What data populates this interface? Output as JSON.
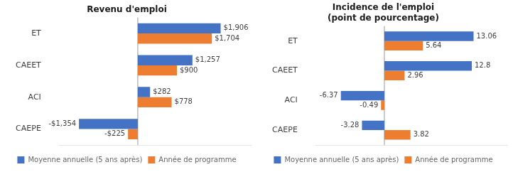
{
  "chart_data": [
    {
      "type": "bar",
      "orientation": "horizontal",
      "title": "Revenu d'emploi",
      "categories": [
        "ET",
        "CAEET",
        "ACI",
        "CAEPE"
      ],
      "series": [
        {
          "name": "Moyenne annuelle (5 ans après)",
          "color": "#4472C4",
          "values": [
            1906,
            1257,
            282,
            -1354
          ],
          "value_labels": [
            "$1,906",
            "$1,257",
            "$282",
            "-$1,354"
          ]
        },
        {
          "name": "Année de programme",
          "color": "#ED7D31",
          "values": [
            1704,
            900,
            778,
            -225
          ],
          "value_labels": [
            "$1,704",
            "$900",
            "$778",
            "-$225"
          ]
        }
      ],
      "xlim": [
        -1800,
        2600
      ],
      "grid": false,
      "legend": "bottom",
      "data_labels": true,
      "tick_labels": "y"
    },
    {
      "type": "bar",
      "orientation": "horizontal",
      "title": "Incidence de l'emploi\n(point de pourcentage)",
      "categories": [
        "ET",
        "CAEET",
        "ACI",
        "CAEPE"
      ],
      "series": [
        {
          "name": "Moyenne annuelle (5 ans après)",
          "color": "#4472C4",
          "values": [
            13.06,
            12.8,
            -6.37,
            -3.28
          ],
          "value_labels": [
            "13.06",
            "12.8",
            "-6.37",
            "-3.28"
          ]
        },
        {
          "name": "Année de programme",
          "color": "#ED7D31",
          "values": [
            5.64,
            2.96,
            -0.49,
            3.82
          ],
          "value_labels": [
            "5.64",
            "2.96",
            "-0.49",
            "3.82"
          ]
        }
      ],
      "xlim": [
        -10,
        18
      ],
      "grid": false,
      "legend": "bottom",
      "data_labels": true,
      "tick_labels": "y"
    }
  ]
}
